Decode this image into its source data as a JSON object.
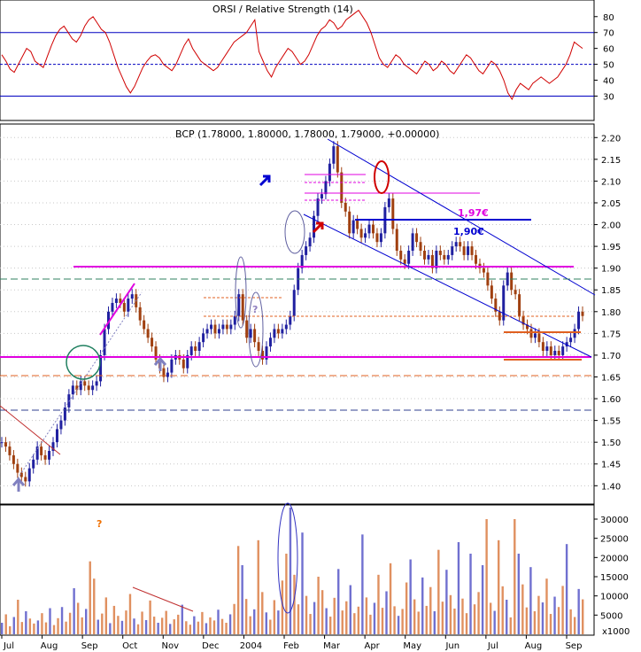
{
  "chart_data": [
    {
      "type": "line",
      "panel": "rsi",
      "title": "ORSI / Relative Strength (14)",
      "y_ticks": [
        30,
        40,
        50,
        60,
        70,
        80
      ],
      "ylim": [
        18,
        86
      ],
      "ref_lines": {
        "upper": 70,
        "mid": 50,
        "lower": 30
      },
      "series": [
        {
          "values": [
            56,
            52,
            47,
            45,
            50,
            55,
            60,
            58,
            52,
            50,
            48,
            55,
            62,
            68,
            72,
            74,
            70,
            66,
            64,
            68,
            74,
            78,
            80,
            76,
            72,
            70,
            64,
            56,
            48,
            42,
            36,
            32,
            36,
            42,
            48,
            52,
            55,
            56,
            54,
            50,
            48,
            46,
            50,
            56,
            62,
            66,
            60,
            56,
            52,
            50,
            48,
            46,
            48,
            52,
            56,
            60,
            64,
            66,
            68,
            70,
            74,
            78,
            58,
            52,
            46,
            42,
            48,
            52,
            56,
            60,
            58,
            54,
            50,
            52,
            56,
            62,
            68,
            72,
            74,
            78,
            76,
            72,
            74,
            78,
            80,
            82,
            84,
            80,
            76,
            70,
            62,
            54,
            50,
            48,
            52,
            56,
            54,
            50,
            48,
            46,
            44,
            48,
            52,
            50,
            46,
            48,
            52,
            50,
            46,
            44,
            48,
            52,
            56,
            54,
            50,
            46,
            44,
            48,
            52,
            50,
            46,
            40,
            32,
            28,
            34,
            38,
            36,
            34,
            38,
            40,
            42,
            40,
            38,
            40,
            42,
            46,
            50,
            56,
            64,
            62,
            60
          ]
        }
      ]
    },
    {
      "type": "candlestick",
      "panel": "price",
      "title": "BCP (1.78000, 1.80000, 1.78000, 1.79000, +0.00000)",
      "y_ticks": [
        1.4,
        1.45,
        1.5,
        1.55,
        1.6,
        1.65,
        1.7,
        1.75,
        1.8,
        1.85,
        1.9,
        1.95,
        2.0,
        2.05,
        2.1,
        2.15,
        2.2
      ],
      "ylim": [
        1.364,
        2.225
      ],
      "series": [
        {
          "name": "close",
          "values": [
            1.5,
            1.49,
            1.47,
            1.45,
            1.43,
            1.42,
            1.41,
            1.44,
            1.46,
            1.49,
            1.47,
            1.46,
            1.48,
            1.5,
            1.53,
            1.55,
            1.58,
            1.61,
            1.63,
            1.62,
            1.64,
            1.63,
            1.62,
            1.63,
            1.64,
            1.7,
            1.76,
            1.8,
            1.82,
            1.83,
            1.82,
            1.8,
            1.83,
            1.84,
            1.81,
            1.78,
            1.76,
            1.74,
            1.72,
            1.69,
            1.67,
            1.65,
            1.66,
            1.69,
            1.7,
            1.69,
            1.67,
            1.7,
            1.72,
            1.71,
            1.73,
            1.75,
            1.76,
            1.77,
            1.75,
            1.76,
            1.77,
            1.76,
            1.77,
            1.79,
            1.84,
            1.78,
            1.74,
            1.76,
            1.73,
            1.71,
            1.69,
            1.72,
            1.74,
            1.76,
            1.75,
            1.76,
            1.77,
            1.79,
            1.85,
            1.9,
            1.93,
            1.95,
            1.97,
            2.02,
            2.06,
            2.07,
            2.1,
            2.14,
            2.18,
            2.12,
            2.05,
            2.03,
            1.98,
            2.01,
            1.99,
            1.97,
            1.98,
            2.0,
            1.98,
            1.96,
            1.98,
            2.04,
            2.06,
            1.99,
            1.94,
            1.92,
            1.91,
            1.94,
            1.98,
            1.96,
            1.94,
            1.92,
            1.93,
            1.9,
            1.94,
            1.93,
            1.92,
            1.93,
            1.95,
            1.96,
            1.95,
            1.93,
            1.95,
            1.93,
            1.91,
            1.9,
            1.89,
            1.86,
            1.83,
            1.8,
            1.78,
            1.86,
            1.89,
            1.85,
            1.84,
            1.79,
            1.77,
            1.76,
            1.74,
            1.75,
            1.73,
            1.71,
            1.72,
            1.7,
            1.71,
            1.7,
            1.72,
            1.73,
            1.74,
            1.76,
            1.8,
            1.79
          ]
        }
      ],
      "annotations": {
        "support_line": 1.64,
        "resistance_line": 1.845,
        "dashed_levels": [
          1.82,
          1.6,
          1.53
        ],
        "labels": [
          "1,97€",
          "1,90€",
          "?"
        ]
      }
    },
    {
      "type": "bar",
      "panel": "volume",
      "y_ticks": [
        5000,
        10000,
        15000,
        20000,
        25000,
        30000
      ],
      "ylim": [
        0,
        33000
      ],
      "x_ticks": [
        "Jul",
        "Aug",
        "Sep",
        "Oct",
        "Nov",
        "Dec",
        "2004",
        "Feb",
        "Mar",
        "Apr",
        "May",
        "Jun",
        "Jul",
        "Aug",
        "Sep"
      ],
      "unit_label": "x1000",
      "annotation": "?",
      "series": [
        {
          "name": "volume",
          "values": [
            3000,
            5200,
            2100,
            4500,
            9000,
            3200,
            6000,
            4100,
            2800,
            3600,
            5500,
            3100,
            6800,
            2400,
            4200,
            7100,
            3300,
            5600,
            12000,
            8200,
            4400,
            6600,
            19000,
            14500,
            3800,
            5400,
            9600,
            2900,
            7400,
            4800,
            3500,
            6200,
            10500,
            4100,
            2600,
            5900,
            3700,
            8800,
            4600,
            3000,
            4300,
            6100,
            2700,
            3900,
            5100,
            7700,
            3400,
            2500,
            4700,
            3300,
            5800,
            2900,
            4400,
            3600,
            6400,
            4000,
            3000,
            5200,
            7900,
            23000,
            18000,
            9200,
            4700,
            6500,
            24500,
            11000,
            5700,
            3800,
            8900,
            6200,
            14000,
            21000,
            33000,
            15500,
            7800,
            26500,
            10000,
            5300,
            8400,
            15000,
            11500,
            6800,
            4600,
            9500,
            17000,
            6200,
            8600,
            12800,
            5500,
            7200,
            26000,
            9600,
            5100,
            8200,
            15500,
            6900,
            11200,
            18500,
            7300,
            4800,
            6600,
            13500,
            19500,
            9100,
            5900,
            14800,
            7400,
            12300,
            6000,
            22000,
            8500,
            16800,
            10200,
            6700,
            24000,
            9300,
            5500,
            21000,
            7800,
            11000,
            18000,
            30000,
            8200,
            6100,
            24500,
            12500,
            9000,
            4400,
            30000,
            21000,
            13000,
            7000,
            17500,
            6000,
            10000,
            8300,
            14500,
            5300,
            9800,
            7100,
            12600,
            23500,
            6500,
            4500,
            11800,
            9100
          ]
        }
      ]
    }
  ]
}
